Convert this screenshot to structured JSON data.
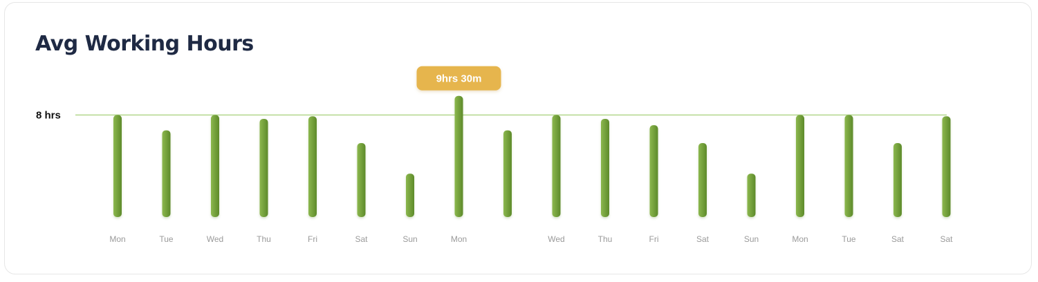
{
  "card": {
    "title": "Avg Working Hours"
  },
  "colors": {
    "bar_light": "#8cb84e",
    "bar_dark": "#5d8a2a",
    "reference_line": "#b2d68c",
    "tooltip_bg": "#e6b54e",
    "title": "#1f2a44",
    "tick": "#9a9a9a"
  },
  "chart_data": {
    "type": "bar",
    "title": "Avg Working Hours",
    "xlabel": "",
    "ylabel": "",
    "ylim": [
      0,
      10.3
    ],
    "grid": false,
    "legend": "none",
    "reference_line": {
      "value": 8,
      "label": "8 hrs"
    },
    "tooltip": {
      "label": "9hrs 30m",
      "category_index": 7
    },
    "categories": [
      "Mon",
      "Tue",
      "Wed",
      "Thu",
      "Fri",
      "Sat",
      "Sun",
      "Mon",
      "",
      "Wed",
      "Thu",
      "Fri",
      "Sat",
      "Sun",
      "Mon",
      "Tue",
      "Sat",
      "Sat"
    ],
    "series": [
      {
        "values": [
          8.0,
          6.8,
          8.0,
          7.7,
          7.9,
          5.8,
          3.4,
          9.5,
          6.8,
          8.0,
          7.7,
          7.2,
          5.8,
          3.4,
          8.0,
          8.0,
          5.8,
          7.9
        ]
      }
    ]
  }
}
